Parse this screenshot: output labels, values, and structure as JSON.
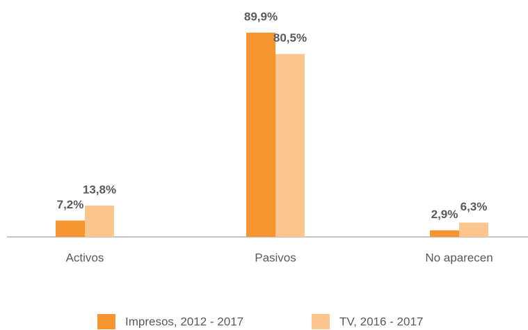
{
  "chart_data": {
    "type": "bar",
    "categories": [
      "Activos",
      "Pasivos",
      "No aparecen"
    ],
    "series": [
      {
        "name": "Impresos, 2012 - 2017",
        "color": "#F79530",
        "values": [
          7.2,
          89.9,
          2.9
        ],
        "value_labels": [
          "7,2%",
          "89,9%",
          "2,9%"
        ]
      },
      {
        "name": "TV, 2016 - 2017",
        "color": "#FDC58E",
        "values": [
          13.8,
          80.5,
          6.3
        ],
        "value_labels": [
          "13,8%",
          "80,5%",
          "6,3%"
        ]
      }
    ]
  }
}
